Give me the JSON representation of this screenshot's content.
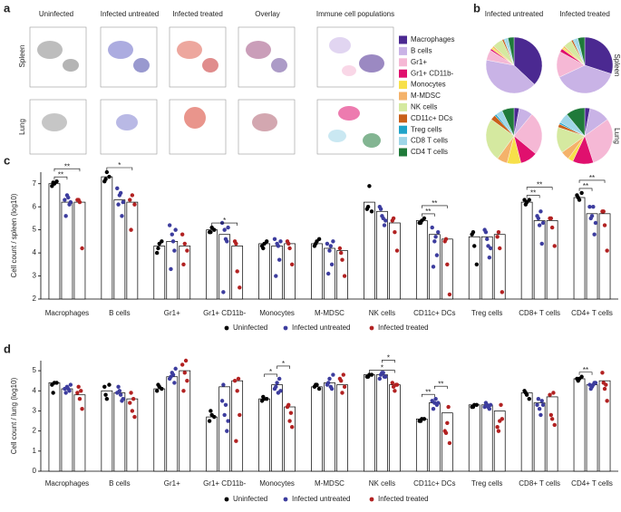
{
  "panel_labels": [
    "a",
    "b",
    "c",
    "d"
  ],
  "panel_a": {
    "columns": [
      "Uninfected",
      "Infected untreated",
      "Infected treated",
      "Overlay",
      "Immune cell populations"
    ],
    "rows": [
      "Spleen",
      "Lung"
    ]
  },
  "chart_data": [
    {
      "type": "pie",
      "column_labels": [
        "Infected untreated",
        "Infected treated"
      ],
      "row_labels": [
        "Spleen",
        "Lung"
      ],
      "categories": [
        "Macrophages",
        "B cells",
        "Gr1+",
        "Gr1+ CD11b-",
        "Monocytes",
        "M-MDSC",
        "NK cells",
        "CD11c+ DCs",
        "Treg cells",
        "CD8 T cells",
        "CD4 T cells"
      ],
      "colors": [
        "#4b2991",
        "#c9b3e6",
        "#f5b8d5",
        "#e0106e",
        "#f7e04a",
        "#f4b26a",
        "#d5e9a0",
        "#c9601a",
        "#1fa3c9",
        "#9fd6e8",
        "#1f7a3a"
      ],
      "values": [
        [
          37,
          41,
          6,
          1,
          1,
          1,
          6,
          1,
          0.5,
          2,
          3.5
        ],
        [
          30,
          38,
          15,
          2,
          1,
          1,
          5,
          1,
          0.5,
          2.5,
          4
        ],
        [
          3,
          8,
          25,
          10,
          8,
          6,
          25,
          3,
          1,
          4,
          7
        ],
        [
          3,
          12,
          30,
          12,
          3,
          5,
          15,
          2,
          1,
          6,
          11
        ]
      ]
    },
    {
      "type": "bar",
      "ylabel": "Cell count / spleen (log10)",
      "ylim": [
        2,
        7.5
      ],
      "yticks": [
        2,
        3,
        4,
        5,
        6,
        7
      ],
      "categories": [
        "Macrophages",
        "B cells",
        "Gr1+",
        "Gr1+ CD11b-",
        "Monocytes",
        "M-MDSC",
        "NK cells",
        "CD11c+ DCs",
        "Treg cells",
        "CD8+ T cells",
        "CD4+ T cells"
      ],
      "series": [
        {
          "name": "Uninfected",
          "color": "#000000",
          "values": [
            7.0,
            7.3,
            4.3,
            5.0,
            4.4,
            4.4,
            6.2,
            5.4,
            4.7,
            6.2,
            6.4
          ],
          "points": [
            [
              6.9,
              7.0,
              7.1,
              7.05
            ],
            [
              7.1,
              7.5,
              7.3,
              7.2
            ],
            [
              4.0,
              4.4,
              4.5,
              4.2
            ],
            [
              4.9,
              5.1,
              5.0,
              4.9
            ],
            [
              4.3,
              4.4,
              4.5,
              4.2
            ],
            [
              4.3,
              4.5,
              4.6,
              4.4
            ],
            [
              5.9,
              6.9,
              5.8,
              6.0
            ],
            [
              5.3,
              5.4,
              5.5,
              5.3
            ],
            [
              4.8,
              4.3,
              3.5,
              4.9
            ],
            [
              6.3,
              6.2,
              6.3,
              6.1
            ],
            [
              6.5,
              6.3,
              6.6,
              6.4
            ]
          ]
        },
        {
          "name": "Infected untreated",
          "color": "#3d3d9e",
          "values": [
            6.2,
            6.3,
            4.5,
            4.8,
            4.3,
            4.2,
            5.8,
            4.8,
            4.7,
            5.4,
            5.7
          ],
          "points": [
            [
              6.3,
              6.5,
              6.1,
              5.6,
              6.4,
              6.2
            ],
            [
              6.8,
              6.5,
              5.6,
              6.1,
              6.6,
              6.2
            ],
            [
              5.2,
              4.8,
              4.1,
              3.3,
              4.5,
              5.0
            ],
            [
              5.3,
              5.0,
              4.5,
              2.3,
              4.6,
              5.1
            ],
            [
              4.6,
              4.4,
              3.7,
              3.0,
              4.3,
              4.5
            ],
            [
              4.4,
              4.1,
              3.5,
              3.1,
              4.3,
              4.5
            ],
            [
              6.0,
              5.6,
              5.2,
              5.9,
              5.5,
              5.4
            ],
            [
              5.1,
              4.5,
              3.9,
              3.4,
              4.7,
              4.9
            ],
            [
              5.0,
              4.6,
              3.8,
              4.9,
              4.3,
              4.2
            ],
            [
              5.6,
              5.2,
              4.4,
              5.5,
              5.8,
              5.3
            ],
            [
              6.0,
              5.6,
              4.8,
              5.5,
              6.0,
              5.3
            ]
          ]
        },
        {
          "name": "Infected treated",
          "color": "#b22222",
          "values": [
            6.2,
            6.2,
            4.3,
            4.3,
            4.4,
            4.1,
            5.3,
            4.6,
            4.8,
            5.4,
            5.7
          ],
          "points": [
            [
              6.3,
              6.2,
              4.2,
              6.3
            ],
            [
              6.3,
              6.5,
              6.1,
              5.0
            ],
            [
              4.8,
              4.4,
              4.1,
              3.5
            ],
            [
              4.5,
              3.2,
              2.5,
              4.4
            ],
            [
              4.5,
              4.2,
              3.5,
              4.4
            ],
            [
              4.2,
              3.7,
              3.0,
              4.0
            ],
            [
              5.4,
              4.9,
              4.1,
              5.5
            ],
            [
              4.5,
              3.5,
              2.2,
              4.6
            ],
            [
              4.7,
              4.2,
              2.3,
              4.9
            ],
            [
              5.5,
              5.1,
              4.3,
              5.5
            ],
            [
              5.8,
              5.2,
              4.1,
              5.8
            ]
          ]
        }
      ],
      "annotations": [
        {
          "text": "**",
          "category": 0,
          "pair": [
            0,
            1
          ]
        },
        {
          "text": "**",
          "category": 0,
          "pair": [
            0,
            2
          ]
        },
        {
          "text": "*",
          "category": 1,
          "pair": [
            0,
            2
          ]
        },
        {
          "text": "*",
          "category": 3,
          "pair": [
            0,
            2
          ]
        },
        {
          "text": "**",
          "category": 7,
          "pair": [
            0,
            1
          ]
        },
        {
          "text": "**",
          "category": 7,
          "pair": [
            0,
            2
          ]
        },
        {
          "text": "**",
          "category": 9,
          "pair": [
            0,
            1
          ]
        },
        {
          "text": "**",
          "category": 9,
          "pair": [
            0,
            2
          ]
        },
        {
          "text": "**",
          "category": 10,
          "pair": [
            0,
            1
          ]
        },
        {
          "text": "**",
          "category": 10,
          "pair": [
            0,
            2
          ]
        }
      ]
    },
    {
      "type": "bar",
      "ylabel": "Cell count / lung (log10)",
      "ylim": [
        0,
        5.5
      ],
      "yticks": [
        0,
        1,
        2,
        3,
        4,
        5
      ],
      "categories": [
        "Macrophages",
        "B cells",
        "Gr1+",
        "Gr1+ CD11b-",
        "Monocytes",
        "M-MDSC",
        "NK cells",
        "CD11c+ DCs",
        "Treg cells",
        "CD8+ T cells",
        "CD4+ T cells"
      ],
      "series": [
        {
          "name": "Uninfected",
          "color": "#000000",
          "values": [
            4.4,
            4.0,
            4.1,
            2.7,
            3.6,
            4.2,
            4.8,
            2.6,
            3.3,
            3.9,
            4.6
          ],
          "points": [
            [
              4.3,
              4.4,
              4.4,
              3.9
            ],
            [
              4.2,
              3.6,
              4.3,
              3.8
            ],
            [
              4.0,
              4.2,
              4.1,
              4.3
            ],
            [
              2.5,
              2.8,
              2.7,
              3.0
            ],
            [
              3.5,
              3.6,
              3.6,
              3.7
            ],
            [
              4.2,
              4.3,
              4.1,
              4.3
            ],
            [
              4.7,
              4.8,
              4.8,
              4.7
            ],
            [
              2.5,
              2.6,
              2.6,
              2.5
            ],
            [
              3.2,
              3.3,
              3.3,
              3.2
            ],
            [
              4.0,
              3.8,
              3.6,
              3.9
            ],
            [
              4.6,
              4.6,
              4.7,
              4.5
            ]
          ]
        },
        {
          "name": "Infected untreated",
          "color": "#3d3d9e",
          "values": [
            4.1,
            3.9,
            4.7,
            4.2,
            4.3,
            4.4,
            4.8,
            3.4,
            3.3,
            3.4,
            4.3
          ],
          "points": [
            [
              4.1,
              4.2,
              4.0,
              3.9,
              4.1,
              4.3
            ],
            [
              3.9,
              4.0,
              3.5,
              4.2,
              3.8,
              3.6
            ],
            [
              4.6,
              4.9,
              4.4,
              4.7,
              4.8,
              5.1
            ],
            [
              3.5,
              2.8,
              2.0,
              4.3,
              3.3,
              2.5
            ],
            [
              4.1,
              4.4,
              4.6,
              4.2,
              3.9,
              4.0
            ],
            [
              4.3,
              4.6,
              4.1,
              4.4,
              4.2,
              4.8
            ],
            [
              4.6,
              4.9,
              4.7,
              4.8,
              4.9,
              4.7
            ],
            [
              3.5,
              3.4,
              3.3,
              3.1,
              3.6,
              3.4
            ],
            [
              3.2,
              3.3,
              3.1,
              3.4,
              3.2,
              3.3
            ],
            [
              3.3,
              3.1,
              3.5,
              3.6,
              2.8,
              3.3
            ],
            [
              4.3,
              4.2,
              4.4,
              4.1,
              4.3,
              4.4
            ]
          ]
        },
        {
          "name": "Infected treated",
          "color": "#b22222",
          "values": [
            3.8,
            3.6,
            5.0,
            4.5,
            3.2,
            4.3,
            4.3,
            2.9,
            3.0,
            3.7,
            4.5
          ],
          "points": [
            [
              3.9,
              3.6,
              3.1,
              4.2,
              4.0
            ],
            [
              3.4,
              3.0,
              2.7,
              3.9,
              3.6
            ],
            [
              5.3,
              4.9,
              4.5,
              4.0,
              5.5
            ],
            [
              4.5,
              4.0,
              2.8,
              1.5,
              4.6
            ],
            [
              3.2,
              2.5,
              2.2,
              3.3,
              2.9
            ],
            [
              4.6,
              3.9,
              4.2,
              4.5,
              4.8
            ],
            [
              4.4,
              4.0,
              4.3,
              4.2,
              4.3
            ],
            [
              2.0,
              2.4,
              1.4,
              1.9,
              3.2
            ],
            [
              2.2,
              2.5,
              2.6,
              2.0,
              3.3
            ],
            [
              3.8,
              2.6,
              2.3,
              2.8,
              3.9
            ],
            [
              4.9,
              4.1,
              3.5,
              4.4,
              4.3
            ]
          ]
        }
      ],
      "annotations": [
        {
          "text": "*",
          "category": 4,
          "pair": [
            0,
            1
          ]
        },
        {
          "text": "*",
          "category": 4,
          "pair": [
            1,
            2
          ]
        },
        {
          "text": "*",
          "category": 6,
          "pair": [
            0,
            2
          ]
        },
        {
          "text": "*",
          "category": 6,
          "pair": [
            1,
            2
          ]
        },
        {
          "text": "**",
          "category": 7,
          "pair": [
            0,
            1
          ]
        },
        {
          "text": "**",
          "category": 7,
          "pair": [
            1,
            2
          ]
        },
        {
          "text": "**",
          "category": 10,
          "pair": [
            0,
            1
          ]
        }
      ]
    }
  ]
}
